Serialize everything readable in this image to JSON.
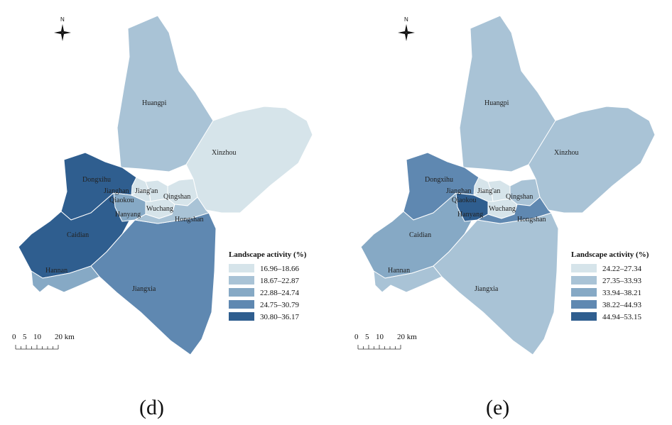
{
  "legend_title": "Landscape activity (%)",
  "north_label": "N",
  "scale": {
    "ticks": [
      "0",
      "5",
      "10",
      "20 km"
    ]
  },
  "district_names": {
    "huangpi": "Huangpi",
    "xinzhou": "Xinzhou",
    "dongxihu": "Dongxihu",
    "caidian": "Caidian",
    "hannan": "Hannan",
    "jiangxia": "Jiangxia",
    "jianghan": "Jianghan",
    "jiangan": "Jiang'an",
    "qiaokou": "Qiaokou",
    "hanyang": "Hanyang",
    "wuchang": "Wuchang",
    "qingshan": "Qingshan",
    "hongshan": "Hongshan"
  },
  "colors": {
    "class1": "#d6e4ea",
    "class2": "#a9c3d6",
    "class3": "#86a9c5",
    "class4": "#5f88b1",
    "class5": "#2f5e8f"
  },
  "panels": [
    {
      "letter": "(d)",
      "legend": [
        "16.96–18.66",
        "18.67–22.87",
        "22.88–24.74",
        "24.75–30.79",
        "30.80–36.17"
      ],
      "district_class": {
        "huangpi": 2,
        "xinzhou": 1,
        "dongxihu": 5,
        "caidian": 5,
        "hannan": 3,
        "jiangxia": 4,
        "jianghan": 1,
        "jiangan": 1,
        "qiaokou": 1,
        "hanyang": 3,
        "wuchang": 1,
        "qingshan": 1,
        "hongshan": 2
      }
    },
    {
      "letter": "(e)",
      "legend": [
        "24.22–27.34",
        "27.35–33.93",
        "33.94–38.21",
        "38.22–44.93",
        "44.94–53.15"
      ],
      "district_class": {
        "huangpi": 2,
        "xinzhou": 2,
        "dongxihu": 4,
        "caidian": 3,
        "hannan": 2,
        "jiangxia": 2,
        "jianghan": 1,
        "jiangan": 1,
        "qiaokou": 1,
        "hanyang": 5,
        "wuchang": 1,
        "qingshan": 2,
        "hongshan": 4
      }
    }
  ]
}
